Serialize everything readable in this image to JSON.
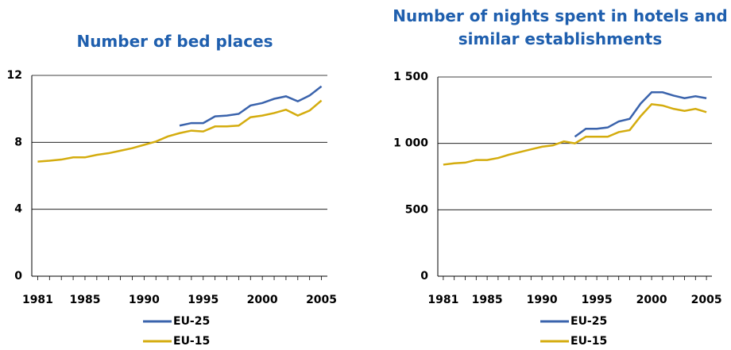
{
  "chart_data": [
    {
      "type": "line",
      "title": "Number of bed places",
      "x": [
        1981,
        1982,
        1983,
        1984,
        1985,
        1986,
        1987,
        1988,
        1989,
        1990,
        1991,
        1992,
        1993,
        1994,
        1995,
        1996,
        1997,
        1998,
        1999,
        2000,
        2001,
        2002,
        2003,
        2004,
        2005
      ],
      "series": [
        {
          "name": "EU-25",
          "color": "#3a63ac",
          "values": [
            null,
            null,
            null,
            null,
            null,
            null,
            null,
            null,
            null,
            null,
            null,
            null,
            9.0,
            9.15,
            9.15,
            9.55,
            9.6,
            9.7,
            10.2,
            10.35,
            10.6,
            10.75,
            10.45,
            10.8,
            11.35
          ]
        },
        {
          "name": "EU-15",
          "color": "#d4ac0e",
          "values": [
            6.85,
            6.9,
            6.97,
            7.1,
            7.1,
            7.25,
            7.35,
            7.5,
            7.65,
            7.85,
            8.05,
            8.35,
            8.55,
            8.7,
            8.65,
            8.95,
            8.95,
            9.0,
            9.5,
            9.6,
            9.75,
            9.95,
            9.6,
            9.9,
            10.5
          ]
        }
      ],
      "xlim": [
        1980.5,
        2005.5
      ],
      "xticks": [
        1981,
        1985,
        1990,
        1995,
        2000,
        2005
      ],
      "ylim": [
        0,
        12
      ],
      "yticks": [
        0,
        4,
        8,
        12
      ],
      "grid": true
    },
    {
      "type": "line",
      "title": "Number of nights spent in hotels and similar establishments",
      "x": [
        1981,
        1982,
        1983,
        1984,
        1985,
        1986,
        1987,
        1988,
        1989,
        1990,
        1991,
        1992,
        1993,
        1994,
        1995,
        1996,
        1997,
        1998,
        1999,
        2000,
        2001,
        2002,
        2003,
        2004,
        2005
      ],
      "series": [
        {
          "name": "EU-25",
          "color": "#3a63ac",
          "values": [
            null,
            null,
            null,
            null,
            null,
            null,
            null,
            null,
            null,
            null,
            null,
            null,
            1050,
            1110,
            1110,
            1120,
            1165,
            1185,
            1300,
            1385,
            1385,
            1360,
            1340,
            1355,
            1340
          ]
        },
        {
          "name": "EU-15",
          "color": "#d4ac0e",
          "values": [
            840,
            850,
            855,
            875,
            875,
            890,
            915,
            935,
            955,
            975,
            985,
            1015,
            1000,
            1050,
            1050,
            1050,
            1085,
            1100,
            1205,
            1295,
            1285,
            1260,
            1245,
            1260,
            1235
          ]
        }
      ],
      "xlim": [
        1980.5,
        2005.5
      ],
      "xticks": [
        1981,
        1985,
        1990,
        1995,
        2000,
        2005
      ],
      "ylim": [
        0,
        1500
      ],
      "yticks": [
        0,
        500,
        {
          "value": 1000,
          "label": "1 000"
        },
        {
          "value": 1500,
          "label": "1 500"
        }
      ],
      "grid": true
    }
  ]
}
